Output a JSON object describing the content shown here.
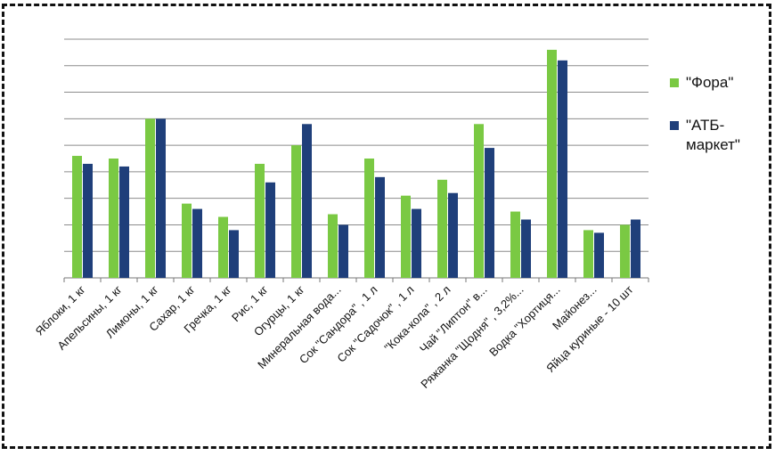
{
  "chart_data": {
    "type": "bar",
    "categories": [
      "Яблоки, 1 кг",
      "Апельсины, 1 кг",
      "Лимоны, 1 кг",
      "Сахар, 1 кг",
      "Гречка, 1 кг",
      "Рис, 1 кг",
      "Огурцы, 1 кг",
      "Минеральная вода...",
      "Сок \"Сандора\" , 1 л",
      "Сок \"Садочок\" , 1 л",
      "\"Кока-кола\" , 2 л",
      "Чай \"Липтон\" в...",
      "Ряжанка \"Щодня\" , 3,2%...",
      "Водка \"Хортиця...",
      "Майонез...",
      "Яйца куриные - 10 шт"
    ],
    "series": [
      {
        "name": "\"Фора\"",
        "color": "#7ac943",
        "values": [
          4.6,
          4.5,
          6.0,
          2.8,
          2.3,
          4.3,
          5.0,
          2.4,
          4.5,
          3.1,
          3.7,
          5.8,
          2.5,
          8.6,
          1.8,
          2.0
        ]
      },
      {
        "name": "\"АТБ-маркет\"",
        "color": "#1f3f7a",
        "values": [
          4.3,
          4.2,
          6.0,
          2.6,
          1.8,
          3.6,
          5.8,
          2.0,
          3.8,
          2.6,
          3.2,
          4.9,
          2.2,
          8.2,
          1.7,
          2.2
        ]
      }
    ],
    "ylim": [
      0,
      9
    ],
    "grid": true,
    "legend_position": "right"
  },
  "legend": {
    "fora_label": "\"Фора\"",
    "atb_label": "\"АТБ-маркет\""
  }
}
